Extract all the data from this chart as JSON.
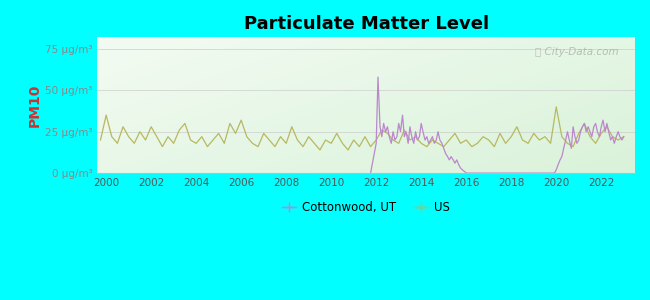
{
  "title": "Particulate Matter Level",
  "ylabel": "PM10",
  "background_color": "#00FFFF",
  "watermark": "Ⓢ City-Data.com",
  "yticks": [
    0,
    25,
    50,
    75
  ],
  "ytick_labels": [
    "0 μg/m³",
    "25 μg/m³",
    "50 μg/m³",
    "75 μg/m³"
  ],
  "ylim": [
    0,
    82
  ],
  "xlim": [
    1999.6,
    2023.5
  ],
  "xticks": [
    2000,
    2002,
    2004,
    2006,
    2008,
    2010,
    2012,
    2014,
    2016,
    2018,
    2020,
    2022
  ],
  "us_color": "#b8b860",
  "cottonwood_color": "#bb88cc",
  "legend_cottonwood": "Cottonwood, UT",
  "legend_us": "US",
  "us_x": [
    1999.75,
    2000.0,
    2000.25,
    2000.5,
    2000.75,
    2001.0,
    2001.25,
    2001.5,
    2001.75,
    2002.0,
    2002.25,
    2002.5,
    2002.75,
    2003.0,
    2003.25,
    2003.5,
    2003.75,
    2004.0,
    2004.25,
    2004.5,
    2004.75,
    2005.0,
    2005.25,
    2005.5,
    2005.75,
    2006.0,
    2006.25,
    2006.5,
    2006.75,
    2007.0,
    2007.25,
    2007.5,
    2007.75,
    2008.0,
    2008.25,
    2008.5,
    2008.75,
    2009.0,
    2009.25,
    2009.5,
    2009.75,
    2010.0,
    2010.25,
    2010.5,
    2010.75,
    2011.0,
    2011.25,
    2011.5,
    2011.75,
    2012.0,
    2012.25,
    2012.5,
    2012.75,
    2013.0,
    2013.25,
    2013.5,
    2013.75,
    2014.0,
    2014.25,
    2014.5,
    2014.75,
    2015.0,
    2015.25,
    2015.5,
    2015.75,
    2016.0,
    2016.25,
    2016.5,
    2016.75,
    2017.0,
    2017.25,
    2017.5,
    2017.75,
    2018.0,
    2018.25,
    2018.5,
    2018.75,
    2019.0,
    2019.25,
    2019.5,
    2019.75,
    2020.0,
    2020.25,
    2020.5,
    2020.75,
    2021.0,
    2021.25,
    2021.5,
    2021.75,
    2022.0,
    2022.25,
    2022.5,
    2022.75,
    2023.0
  ],
  "us_y": [
    20,
    35,
    22,
    18,
    28,
    22,
    18,
    25,
    20,
    28,
    22,
    16,
    22,
    18,
    26,
    30,
    20,
    18,
    22,
    16,
    20,
    24,
    18,
    30,
    24,
    32,
    22,
    18,
    16,
    24,
    20,
    16,
    22,
    18,
    28,
    20,
    16,
    22,
    18,
    14,
    20,
    18,
    24,
    18,
    14,
    20,
    16,
    22,
    16,
    20,
    26,
    24,
    20,
    18,
    26,
    20,
    22,
    18,
    16,
    20,
    18,
    16,
    20,
    24,
    18,
    20,
    16,
    18,
    22,
    20,
    16,
    24,
    18,
    22,
    28,
    20,
    18,
    24,
    20,
    22,
    18,
    40,
    22,
    18,
    16,
    24,
    30,
    22,
    18,
    24,
    28,
    22,
    20,
    22
  ],
  "cottonwood_x": [
    2011.75,
    2012.0,
    2012.08,
    2012.17,
    2012.25,
    2012.33,
    2012.42,
    2012.5,
    2012.58,
    2012.67,
    2012.75,
    2012.83,
    2012.92,
    2013.0,
    2013.08,
    2013.17,
    2013.25,
    2013.33,
    2013.42,
    2013.5,
    2013.58,
    2013.67,
    2013.75,
    2013.83,
    2013.92,
    2014.0,
    2014.08,
    2014.17,
    2014.25,
    2014.33,
    2014.42,
    2014.5,
    2014.58,
    2014.67,
    2014.75,
    2014.83,
    2014.92,
    2015.0,
    2015.08,
    2015.17,
    2015.25,
    2015.33,
    2015.42,
    2015.5,
    2015.58,
    2015.67,
    2015.75,
    2015.83,
    2015.92,
    2016.0,
    2016.08,
    2019.92,
    2020.0,
    2020.08,
    2020.17,
    2020.25,
    2020.33,
    2020.42,
    2020.5,
    2020.58,
    2020.67,
    2020.75,
    2020.83,
    2020.92,
    2021.0,
    2021.08,
    2021.17,
    2021.25,
    2021.33,
    2021.42,
    2021.5,
    2021.58,
    2021.67,
    2021.75,
    2021.83,
    2021.92,
    2022.0,
    2022.08,
    2022.17,
    2022.25,
    2022.33,
    2022.42,
    2022.5,
    2022.58,
    2022.67,
    2022.75,
    2022.83,
    2022.92,
    2023.0
  ],
  "cottonwood_y": [
    0,
    18,
    58,
    28,
    22,
    30,
    25,
    28,
    22,
    18,
    25,
    20,
    22,
    30,
    25,
    35,
    22,
    25,
    18,
    28,
    22,
    18,
    25,
    20,
    22,
    30,
    25,
    20,
    22,
    18,
    20,
    22,
    18,
    20,
    25,
    20,
    18,
    15,
    12,
    10,
    8,
    10,
    8,
    6,
    8,
    5,
    3,
    2,
    1,
    0,
    0,
    0,
    2,
    5,
    8,
    10,
    15,
    20,
    25,
    20,
    15,
    28,
    22,
    18,
    20,
    25,
    28,
    30,
    25,
    28,
    25,
    22,
    28,
    30,
    25,
    22,
    28,
    32,
    25,
    30,
    25,
    20,
    22,
    18,
    22,
    25,
    22,
    20,
    22
  ]
}
